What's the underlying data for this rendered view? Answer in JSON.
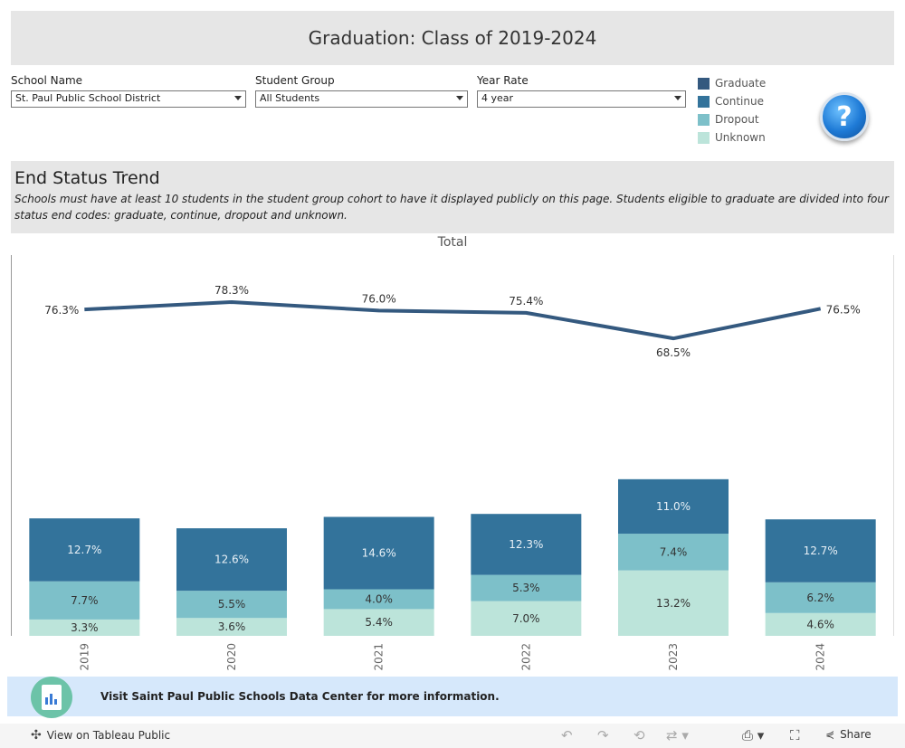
{
  "title": "Graduation: Class of 2019-2024",
  "filters": [
    {
      "label": "School Name",
      "value": "St. Paul Public School District"
    },
    {
      "label": "Student Group",
      "value": "All Students"
    },
    {
      "label": "Year Rate",
      "value": "4 year"
    }
  ],
  "legend": [
    {
      "label": "Graduate",
      "color": "#34597f"
    },
    {
      "label": "Continue",
      "color": "#33739b"
    },
    {
      "label": "Dropout",
      "color": "#7dc0c9"
    },
    {
      "label": "Unknown",
      "color": "#bce4da"
    }
  ],
  "help_icon": "question-mark-icon",
  "section": {
    "heading": "End Status Trend",
    "note": "Schools must have at least 10 students in the student group cohort  to have it displayed publicly on this page. Students eligible to graduate are divided into four status end codes: graduate, continue, dropout and unknown."
  },
  "chart_data": {
    "type": "bar",
    "title": "Total",
    "categories": [
      "2019",
      "2020",
      "2021",
      "2022",
      "2023",
      "2024"
    ],
    "series": [
      {
        "name": "Graduate",
        "type": "line",
        "values": [
          76.3,
          78.3,
          76.0,
          75.4,
          68.5,
          76.5
        ],
        "labels": [
          "76.3%",
          "78.3%",
          "76.0%",
          "75.4%",
          "68.5%",
          "76.5%"
        ],
        "color": "#34597f"
      },
      {
        "name": "Continue",
        "type": "stacked-bar",
        "values": [
          12.7,
          12.6,
          14.6,
          12.3,
          11.0,
          12.7
        ],
        "labels": [
          "12.7%",
          "12.6%",
          "14.6%",
          "12.3%",
          "11.0%",
          "12.7%"
        ],
        "color": "#33739b"
      },
      {
        "name": "Dropout",
        "type": "stacked-bar",
        "values": [
          7.7,
          5.5,
          4.0,
          5.3,
          7.4,
          6.2
        ],
        "labels": [
          "7.7%",
          "5.5%",
          "4.0%",
          "5.3%",
          "7.4%",
          "6.2%"
        ],
        "color": "#7dc0c9"
      },
      {
        "name": "Unknown",
        "type": "stacked-bar",
        "values": [
          3.3,
          3.6,
          5.4,
          7.0,
          13.2,
          4.6
        ],
        "labels": [
          "3.3%",
          "3.6%",
          "5.4%",
          "7.0%",
          "13.2%",
          "4.6%"
        ],
        "color": "#bce4da"
      }
    ],
    "grid": false,
    "legend_position": "top-right"
  },
  "footer": {
    "text": "Visit Saint Paul Public Schools Data Center for more information.",
    "logo_icon": "data-center-logo-icon"
  },
  "toolbar": {
    "view_on": "View on Tableau Public",
    "share": "Share",
    "icons": [
      "tableau-icon",
      "undo-icon",
      "redo-icon",
      "revert-icon",
      "refresh-icon",
      "download-icon",
      "fullscreen-icon",
      "share-icon"
    ]
  }
}
